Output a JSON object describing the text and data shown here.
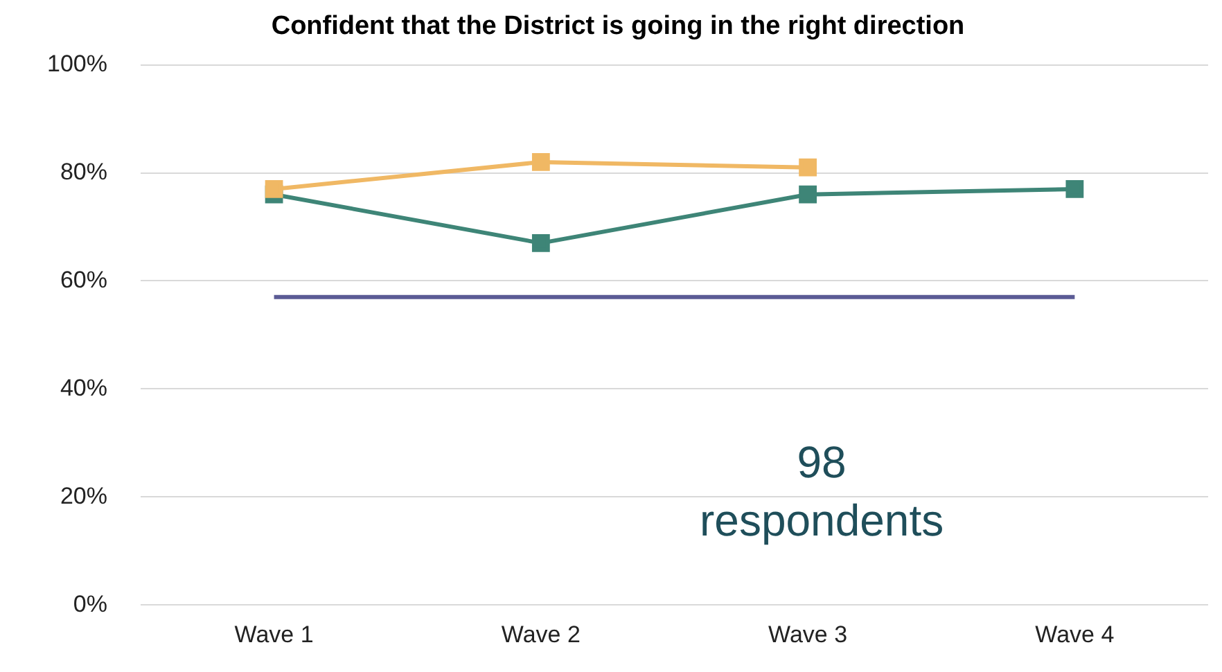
{
  "chart_data": {
    "type": "line",
    "title": "Confident that the District is going in the right direction",
    "categories": [
      "Wave 1",
      "Wave 2",
      "Wave 3",
      "Wave 4"
    ],
    "series": [
      {
        "color": "#3e8577",
        "values": [
          76,
          67,
          76,
          77
        ]
      },
      {
        "color": "#f0b864",
        "values": [
          77,
          82,
          81,
          null
        ]
      },
      {
        "color": "#5b5b95",
        "values": [
          57,
          57,
          57,
          57
        ],
        "marker": "none"
      }
    ],
    "ylim": [
      0,
      100
    ],
    "yticks": [
      {
        "value": 0,
        "label": "0%"
      },
      {
        "value": 20,
        "label": "20%"
      },
      {
        "value": 40,
        "label": "40%"
      },
      {
        "value": 60,
        "label": "60%"
      },
      {
        "value": 80,
        "label": "80%"
      },
      {
        "value": 100,
        "label": "100%"
      }
    ],
    "grid": "y",
    "legend": false,
    "marker": "square",
    "annotations": [
      "98 respondents"
    ]
  }
}
